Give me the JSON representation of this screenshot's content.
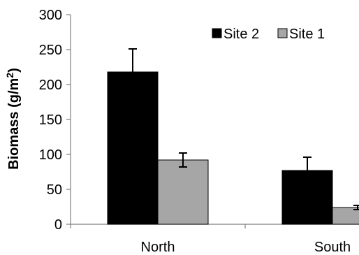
{
  "chart_data": {
    "type": "bar",
    "categories": [
      "North",
      "South"
    ],
    "series": [
      {
        "name": "Site 2",
        "values": [
          218,
          77
        ],
        "errors": [
          33,
          19
        ],
        "color": "#000000"
      },
      {
        "name": "Site 1",
        "values": [
          92,
          24
        ],
        "errors": [
          10,
          3
        ],
        "color": "#a6a6a6"
      }
    ],
    "ylabel_main": "Biomass (g/m",
    "ylabel_sup": "2",
    "ylabel_end": ")",
    "ylim": [
      0,
      300
    ],
    "yticks": [
      0,
      50,
      100,
      150,
      200,
      250,
      300
    ],
    "legend_position": "top-right",
    "grid": false
  }
}
